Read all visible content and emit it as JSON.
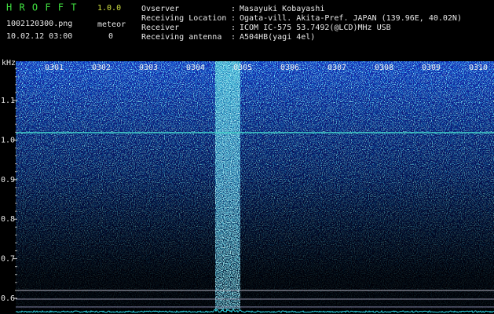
{
  "header": {
    "app": "H R O F F T",
    "version": "1.0.0",
    "file": "1002120300.png",
    "meteor_label": "meteor",
    "datetime": "10.02.12 03:00",
    "meteor_count": "0"
  },
  "info": {
    "separator": ":",
    "rows": [
      {
        "label": "Ovserver",
        "value": "Masayuki Kobayashi"
      },
      {
        "label": "Receiving Location",
        "value": "Ogata-vill. Akita-Pref. JAPAN (139.96E, 40.02N)"
      },
      {
        "label": "Receiver",
        "value": "ICOM IC-575 53.7492(@LCD)MHz USB"
      },
      {
        "label": "Receiving antenna",
        "value": "A504HB(yagi 4el)"
      }
    ]
  },
  "axis": {
    "unit": "kHz",
    "yticks": [
      "1.1",
      "1.0",
      "0.9",
      "0.8",
      "0.7",
      "0.6"
    ],
    "xlabels": [
      "0301",
      "0302",
      "0303",
      "0304",
      "0305",
      "0306",
      "0307",
      "0308",
      "0309",
      "0310"
    ]
  }
}
